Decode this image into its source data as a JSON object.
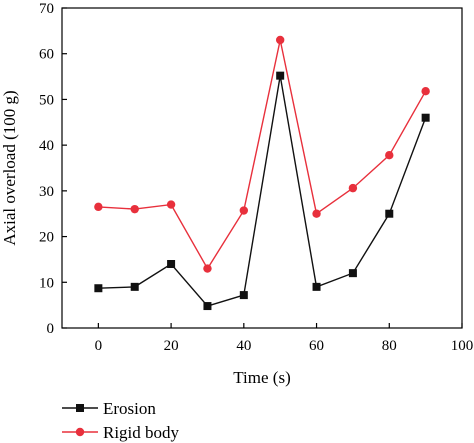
{
  "chart_data": {
    "type": "line",
    "xlabel": "Time (s)",
    "ylabel": "Axial overload (100 g)",
    "xlim": [
      -10,
      100
    ],
    "ylim": [
      0,
      70
    ],
    "xticks": [
      0,
      20,
      40,
      60,
      80,
      100
    ],
    "yticks": [
      0,
      10,
      20,
      30,
      40,
      50,
      60,
      70
    ],
    "grid": false,
    "legend_position": "bottom-left, below plot",
    "x": [
      0,
      10,
      20,
      30,
      40,
      50,
      60,
      70,
      80,
      90
    ],
    "series": [
      {
        "name": "Erosion",
        "color": "#111111",
        "marker": "square",
        "values": [
          8.7,
          9.0,
          14.0,
          4.8,
          7.2,
          55.2,
          9.0,
          12.0,
          25.0,
          46.0
        ]
      },
      {
        "name": "Rigid body",
        "color": "#e8303c",
        "marker": "circle",
        "values": [
          26.5,
          26.0,
          27.0,
          13.0,
          25.7,
          63.0,
          25.0,
          30.6,
          37.8,
          51.8
        ]
      }
    ]
  }
}
